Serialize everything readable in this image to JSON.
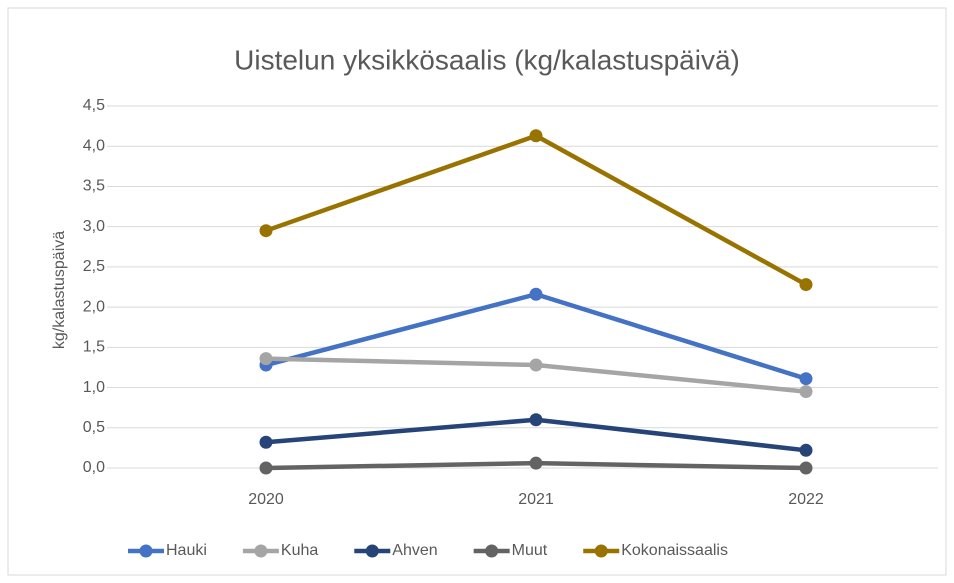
{
  "chart_data": {
    "type": "line",
    "title": "Uistelun yksikkösaalis (kg/kalastuspäivä)",
    "y_label": "kg/kalastuspäivä",
    "categories": [
      "2020",
      "2021",
      "2022"
    ],
    "series": [
      {
        "name": "Hauki",
        "color": "#4472c4",
        "values": [
          1.28,
          2.16,
          1.11
        ]
      },
      {
        "name": "Kuha",
        "color": "#a5a5a5",
        "values": [
          1.36,
          1.28,
          0.95
        ]
      },
      {
        "name": "Ahven",
        "color": "#264478",
        "values": [
          0.32,
          0.6,
          0.22
        ]
      },
      {
        "name": "Muut",
        "color": "#636363",
        "values": [
          0.0,
          0.06,
          0.0
        ]
      },
      {
        "name": "Kokonaissaalis",
        "color": "#997300",
        "values": [
          2.95,
          4.13,
          2.28
        ]
      }
    ],
    "ylim": [
      0,
      4.5
    ],
    "yticks": [
      {
        "value": 0,
        "label": "0,0"
      },
      {
        "value": 0.5,
        "label": "0,5"
      },
      {
        "value": 1,
        "label": "1,0"
      },
      {
        "value": 1.5,
        "label": "1,5"
      },
      {
        "value": 2,
        "label": "2,0"
      },
      {
        "value": 2.5,
        "label": "2,5"
      },
      {
        "value": 3,
        "label": "3,0"
      },
      {
        "value": 3.5,
        "label": "3,5"
      },
      {
        "value": 4,
        "label": "4,0"
      },
      {
        "value": 4.5,
        "label": "4,5"
      }
    ],
    "grid": true,
    "legend": "bottom"
  }
}
